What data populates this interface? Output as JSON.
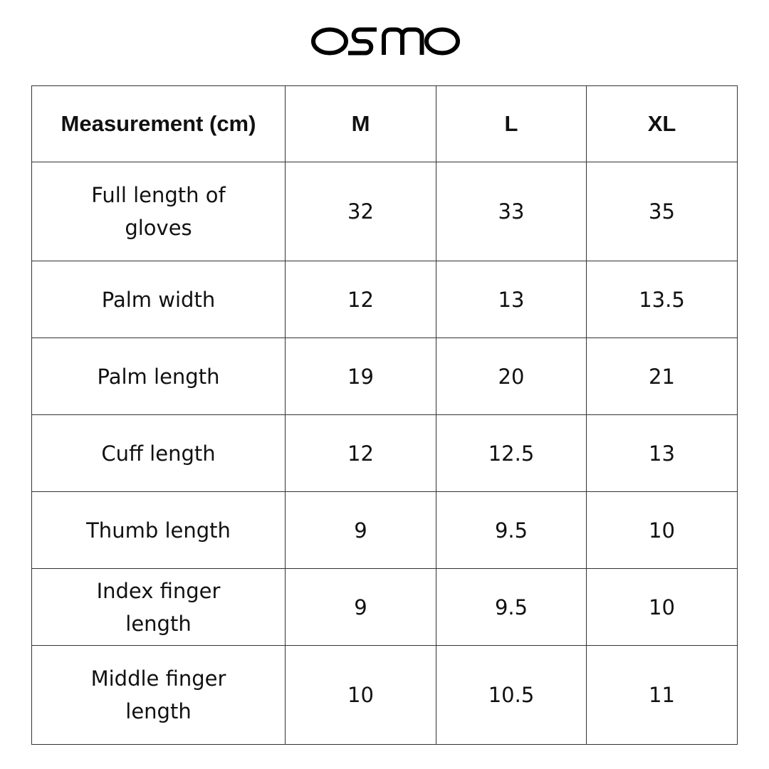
{
  "brand": {
    "logo_text": "osmo"
  },
  "table": {
    "headers": [
      "Measurement (cm)",
      "M",
      "L",
      "XL"
    ],
    "rows": [
      [
        "Full length of gloves",
        "32",
        "33",
        "35"
      ],
      [
        "Palm width",
        "12",
        "13",
        "13.5"
      ],
      [
        "Palm length",
        "19",
        "20",
        "21"
      ],
      [
        "Cuff length",
        "12",
        "12.5",
        "13"
      ],
      [
        "Thumb length",
        "9",
        "9.5",
        "10"
      ],
      [
        "Index finger length",
        "9",
        "9.5",
        "10"
      ],
      [
        "Middle finger length",
        "10",
        "10.5",
        "11"
      ]
    ]
  }
}
